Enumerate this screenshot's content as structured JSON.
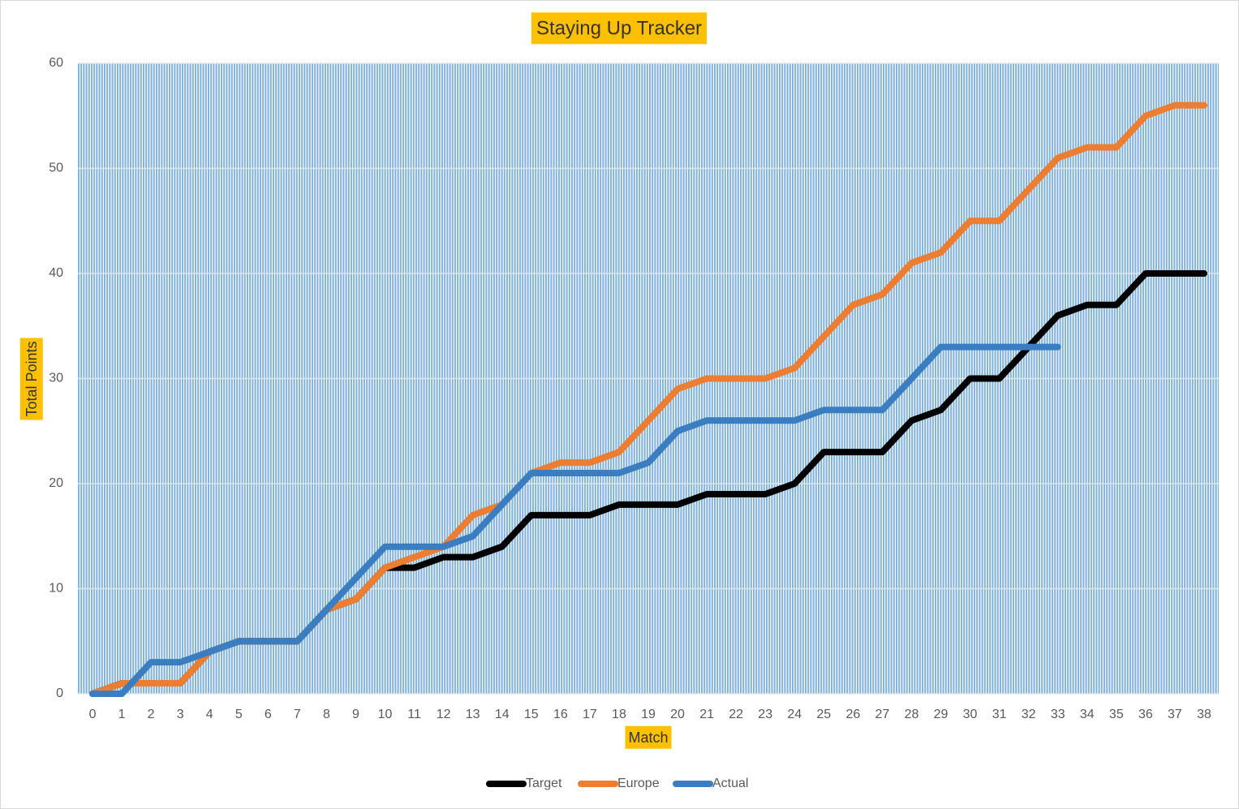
{
  "chart_data": {
    "type": "line",
    "title": "Staying Up Tracker",
    "x_label": "Match",
    "y_label": "Total Points",
    "categories": [
      0,
      1,
      2,
      3,
      4,
      5,
      6,
      7,
      8,
      9,
      10,
      11,
      12,
      13,
      14,
      15,
      16,
      17,
      18,
      19,
      20,
      21,
      22,
      23,
      24,
      25,
      26,
      27,
      28,
      29,
      30,
      31,
      32,
      33,
      34,
      35,
      36,
      37,
      38
    ],
    "series": [
      {
        "name": "Target",
        "color": "#000000",
        "values": [
          0,
          1,
          1,
          1,
          4,
          5,
          5,
          5,
          8,
          9,
          12,
          12,
          13,
          13,
          14,
          17,
          17,
          17,
          18,
          18,
          18,
          19,
          19,
          19,
          20,
          23,
          23,
          23,
          26,
          27,
          30,
          30,
          33,
          36,
          37,
          37,
          40,
          40,
          40
        ]
      },
      {
        "name": "Europe",
        "color": "#ed7d31",
        "values": [
          0,
          1,
          1,
          1,
          4,
          5,
          5,
          5,
          8,
          9,
          12,
          13,
          14,
          17,
          18,
          21,
          22,
          22,
          23,
          26,
          29,
          30,
          30,
          30,
          31,
          34,
          37,
          38,
          41,
          42,
          45,
          45,
          48,
          51,
          52,
          52,
          55,
          56,
          56
        ]
      },
      {
        "name": "Actual",
        "color": "#3a7dc0",
        "values": [
          0,
          0,
          3,
          3,
          4,
          5,
          5,
          5,
          8,
          11,
          14,
          14,
          14,
          15,
          18,
          21,
          21,
          21,
          21,
          22,
          25,
          26,
          26,
          26,
          26,
          27,
          27,
          27,
          30,
          33,
          33,
          33,
          33,
          33,
          null,
          null,
          null,
          null,
          null
        ]
      }
    ],
    "ylim": [
      0,
      60
    ],
    "yticks": [
      0,
      10,
      20,
      30,
      40,
      50,
      60
    ],
    "grid": true,
    "legend": "bottom"
  }
}
